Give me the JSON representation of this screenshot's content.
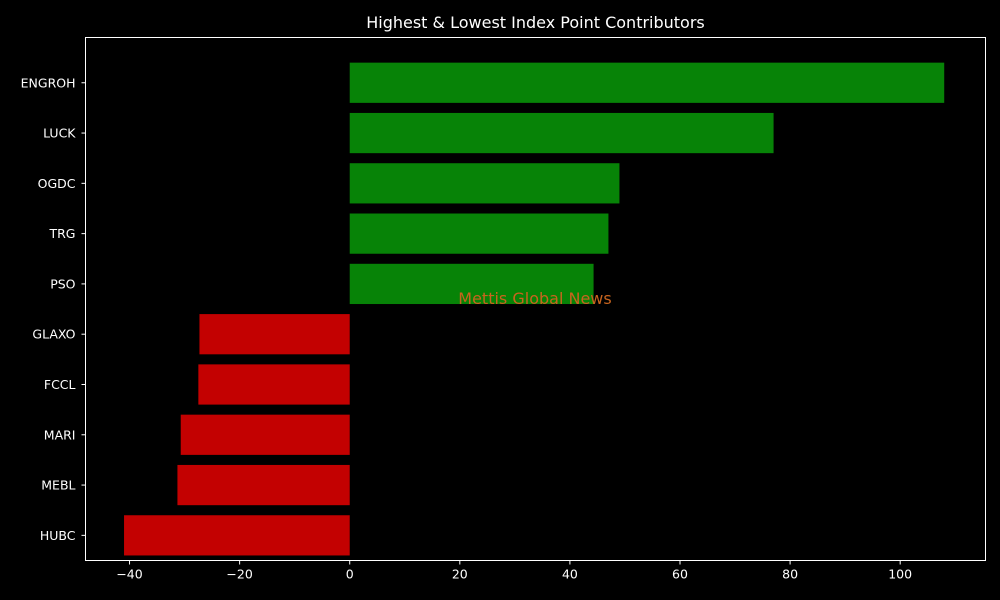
{
  "chart_data": {
    "type": "bar",
    "orientation": "horizontal",
    "title": "Highest & Lowest Index Point Contributors",
    "xlabel": "",
    "ylabel": "",
    "watermark": "Mettis Global News",
    "categories": [
      "ENGROH",
      "LUCK",
      "OGDC",
      "TRG",
      "PSO",
      "GLAXO",
      "FCCL",
      "MARI",
      "MEBL",
      "HUBC"
    ],
    "values": [
      108,
      77,
      49,
      47,
      44.3,
      -27.3,
      -27.5,
      -30.7,
      -31.3,
      -41
    ],
    "xlim": [
      -48,
      115.5
    ],
    "xticks": [
      -40,
      -20,
      0,
      20,
      40,
      60,
      80,
      100
    ],
    "grid": false,
    "positive_color": "#078307",
    "negative_color": "#c30101",
    "background": "#000000",
    "foreground": "#ffffff"
  }
}
